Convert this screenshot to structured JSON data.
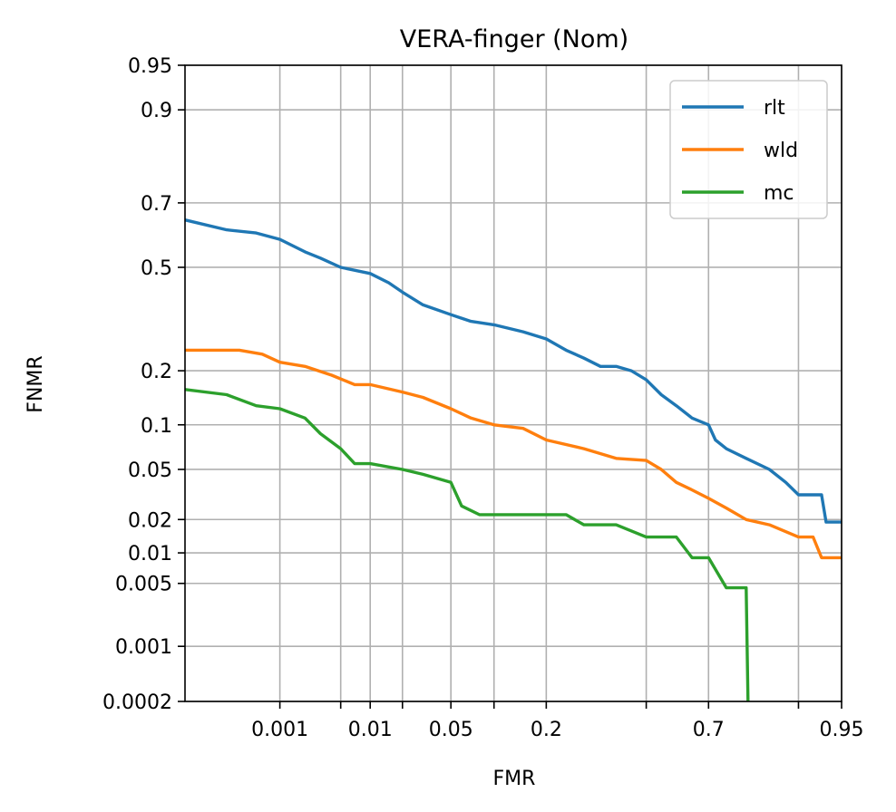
{
  "chart_data": {
    "type": "line",
    "title": "VERA-finger (Nom)",
    "xlabel": "FMR",
    "ylabel": "FNMR",
    "x_scale": "probit",
    "y_scale": "probit",
    "xlim": [
      5e-05,
      0.95
    ],
    "ylim": [
      0.0002,
      0.95
    ],
    "x_ticks": [
      0.001,
      0.01,
      0.05,
      0.2,
      0.7,
      0.95
    ],
    "x_tick_labels": [
      "0.001",
      "0.01",
      "0.05",
      "0.2",
      "0.7",
      "0.95"
    ],
    "x_minor_ticks": [
      0.005,
      0.02,
      0.1,
      0.5,
      0.9
    ],
    "y_ticks": [
      0.0002,
      0.001,
      0.005,
      0.01,
      0.02,
      0.05,
      0.1,
      0.2,
      0.5,
      0.7,
      0.9,
      0.95
    ],
    "y_tick_labels": [
      "0.0002",
      "0.001",
      "0.005",
      "0.01",
      "0.02",
      "0.05",
      "0.1",
      "0.2",
      "0.5",
      "0.7",
      "0.9",
      "0.95"
    ],
    "grid": true,
    "legend_position": "top-right",
    "series": [
      {
        "name": "rlt",
        "color": "#1f77b4",
        "points": [
          [
            5e-05,
            0.65
          ],
          [
            0.0002,
            0.62
          ],
          [
            0.0005,
            0.61
          ],
          [
            0.001,
            0.59
          ],
          [
            0.002,
            0.55
          ],
          [
            0.003,
            0.53
          ],
          [
            0.005,
            0.5
          ],
          [
            0.01,
            0.48
          ],
          [
            0.015,
            0.45
          ],
          [
            0.02,
            0.42
          ],
          [
            0.03,
            0.38
          ],
          [
            0.05,
            0.35
          ],
          [
            0.07,
            0.33
          ],
          [
            0.1,
            0.32
          ],
          [
            0.15,
            0.3
          ],
          [
            0.2,
            0.28
          ],
          [
            0.25,
            0.25
          ],
          [
            0.3,
            0.23
          ],
          [
            0.35,
            0.21
          ],
          [
            0.4,
            0.21
          ],
          [
            0.45,
            0.2
          ],
          [
            0.5,
            0.18
          ],
          [
            0.55,
            0.15
          ],
          [
            0.6,
            0.13
          ],
          [
            0.65,
            0.11
          ],
          [
            0.7,
            0.1
          ],
          [
            0.72,
            0.08
          ],
          [
            0.75,
            0.07
          ],
          [
            0.8,
            0.06
          ],
          [
            0.85,
            0.05
          ],
          [
            0.88,
            0.04
          ],
          [
            0.9,
            0.032
          ],
          [
            0.93,
            0.032
          ],
          [
            0.935,
            0.019
          ],
          [
            0.95,
            0.019
          ]
        ]
      },
      {
        "name": "wld",
        "color": "#ff7f0e",
        "points": [
          [
            5e-05,
            0.25
          ],
          [
            0.0003,
            0.25
          ],
          [
            0.0006,
            0.24
          ],
          [
            0.001,
            0.22
          ],
          [
            0.002,
            0.21
          ],
          [
            0.004,
            0.19
          ],
          [
            0.007,
            0.17
          ],
          [
            0.01,
            0.17
          ],
          [
            0.02,
            0.155
          ],
          [
            0.03,
            0.145
          ],
          [
            0.05,
            0.125
          ],
          [
            0.07,
            0.11
          ],
          [
            0.1,
            0.1
          ],
          [
            0.15,
            0.095
          ],
          [
            0.2,
            0.08
          ],
          [
            0.3,
            0.07
          ],
          [
            0.4,
            0.06
          ],
          [
            0.5,
            0.058
          ],
          [
            0.55,
            0.05
          ],
          [
            0.6,
            0.04
          ],
          [
            0.65,
            0.035
          ],
          [
            0.7,
            0.03
          ],
          [
            0.75,
            0.025
          ],
          [
            0.8,
            0.02
          ],
          [
            0.85,
            0.018
          ],
          [
            0.9,
            0.014
          ],
          [
            0.92,
            0.014
          ],
          [
            0.93,
            0.009
          ],
          [
            0.95,
            0.009
          ]
        ]
      },
      {
        "name": "mc",
        "color": "#2ca02c",
        "points": [
          [
            5e-05,
            0.16
          ],
          [
            0.0002,
            0.15
          ],
          [
            0.0005,
            0.13
          ],
          [
            0.001,
            0.125
          ],
          [
            0.002,
            0.11
          ],
          [
            0.003,
            0.088
          ],
          [
            0.005,
            0.07
          ],
          [
            0.007,
            0.055
          ],
          [
            0.01,
            0.055
          ],
          [
            0.02,
            0.05
          ],
          [
            0.03,
            0.046
          ],
          [
            0.05,
            0.04
          ],
          [
            0.06,
            0.026
          ],
          [
            0.08,
            0.022
          ],
          [
            0.15,
            0.022
          ],
          [
            0.25,
            0.022
          ],
          [
            0.3,
            0.018
          ],
          [
            0.4,
            0.018
          ],
          [
            0.5,
            0.014
          ],
          [
            0.6,
            0.014
          ],
          [
            0.65,
            0.009
          ],
          [
            0.7,
            0.009
          ],
          [
            0.75,
            0.0045
          ],
          [
            0.8,
            0.0045
          ],
          [
            0.805,
            0.0001
          ]
        ]
      }
    ]
  }
}
